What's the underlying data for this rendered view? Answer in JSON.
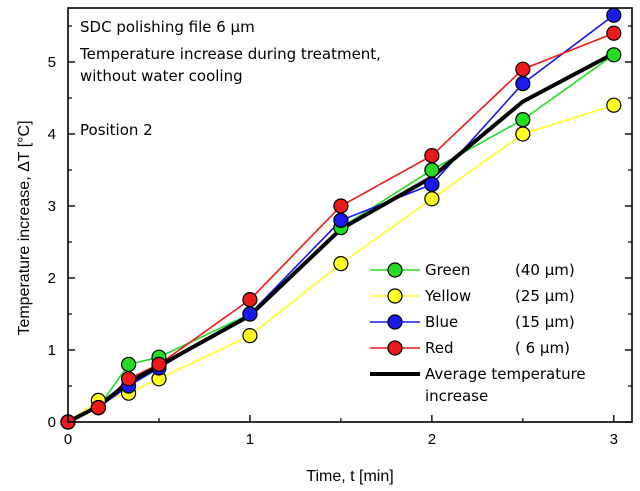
{
  "chart_data": {
    "type": "line",
    "xlabel": "Time, t [min]",
    "ylabel": "Temperature increase, ΔT [°C]",
    "xlim": [
      0,
      3.1
    ],
    "ylim": [
      0,
      5.75
    ],
    "xticks": [
      0,
      1,
      2,
      3
    ],
    "yticks": [
      0,
      1,
      2,
      3,
      4,
      5
    ],
    "grid": false,
    "annotations": [
      "SDC polishing file 6 µm",
      "Temperature increase during treatment,",
      "without water cooling",
      "Position 2"
    ],
    "legend_position": "bottom-right",
    "series": [
      {
        "name": "Green",
        "detail": "(40 µm)",
        "color": "#22dd22",
        "marker": "circle",
        "x": [
          0,
          0.167,
          0.333,
          0.5,
          1,
          1.5,
          2,
          2.5,
          3
        ],
        "y": [
          0,
          0.2,
          0.8,
          0.9,
          1.5,
          2.7,
          3.5,
          4.2,
          5.1
        ]
      },
      {
        "name": "Yellow",
        "detail": "(25 µm)",
        "color": "#ffff22",
        "marker": "circle",
        "x": [
          0,
          0.167,
          0.333,
          0.5,
          1,
          1.5,
          2,
          2.5,
          3
        ],
        "y": [
          0,
          0.3,
          0.4,
          0.6,
          1.2,
          2.2,
          3.1,
          4.0,
          4.4
        ]
      },
      {
        "name": "Blue",
        "detail": "(15 µm)",
        "color": "#1a1aee",
        "marker": "circle",
        "x": [
          0,
          0.167,
          0.333,
          0.5,
          1,
          1.5,
          2,
          2.5,
          3
        ],
        "y": [
          0,
          0.2,
          0.5,
          0.75,
          1.5,
          2.8,
          3.3,
          4.7,
          5.65
        ]
      },
      {
        "name": "Red",
        "detail": "( 6 µm)",
        "color": "#ee1a1a",
        "marker": "circle",
        "x": [
          0,
          0.167,
          0.333,
          0.5,
          1,
          1.5,
          2,
          2.5,
          3
        ],
        "y": [
          0,
          0.2,
          0.6,
          0.8,
          1.7,
          3.0,
          3.7,
          4.9,
          5.4
        ]
      },
      {
        "name": "Average temperature",
        "name_line2": "increase",
        "color": "#000000",
        "marker": "none",
        "x": [
          0,
          0.167,
          0.333,
          0.5,
          1,
          1.5,
          2,
          2.5,
          3
        ],
        "y": [
          0,
          0.22,
          0.55,
          0.78,
          1.48,
          2.68,
          3.4,
          4.45,
          5.12
        ]
      }
    ]
  }
}
